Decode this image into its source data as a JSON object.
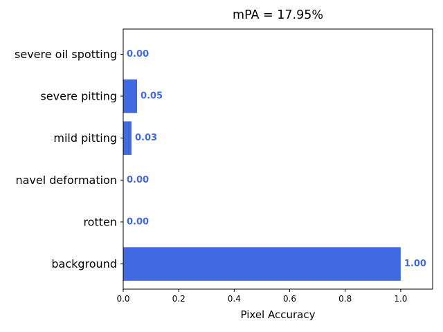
{
  "chart_data": {
    "type": "bar",
    "orientation": "horizontal",
    "title": "mPA = 17.95%",
    "xlabel": "Pixel Accuracy",
    "ylabel": "",
    "categories": [
      "background",
      "rotten",
      "navel deformation",
      "mild pitting",
      "severe pitting",
      "severe oil spotting"
    ],
    "values": [
      1.0,
      0.0,
      0.0,
      0.03,
      0.05,
      0.0
    ],
    "value_labels": [
      "1.00",
      "0.00",
      "0.00",
      "0.03",
      "0.05",
      "0.00"
    ],
    "xlim": [
      0,
      1.115
    ],
    "xticks": [
      0.0,
      0.2,
      0.4,
      0.6,
      0.8,
      1.0
    ],
    "xtick_labels": [
      "0.0",
      "0.2",
      "0.4",
      "0.6",
      "0.8",
      "1.0"
    ],
    "grid": false,
    "bar_color": "#4169e1",
    "label_color": "#4169e1"
  }
}
